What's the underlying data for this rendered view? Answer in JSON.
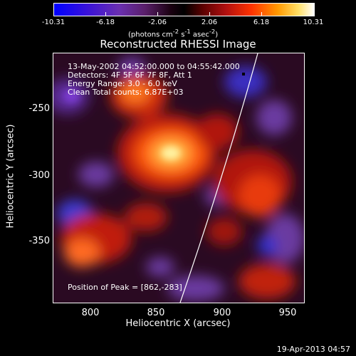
{
  "colorbar": {
    "ticks": [
      "-10.31",
      "-6.18",
      "-2.06",
      "2.06",
      "6.18",
      "10.31"
    ],
    "units": "(photons cm",
    "units_exp1": "-2",
    "units_mid": " s",
    "units_exp2": "-1",
    "units_mid2": " asec",
    "units_exp3": "-2",
    "units_end": ")"
  },
  "title": "Reconstructed RHESSI Image",
  "info": {
    "line1": "13-May-2002 04:52:00.000 to 04:55:42.000",
    "line2": "Detectors: 4F 5F 6F 7F 8F, Att 1",
    "line3": "Energy Range: 3.0 - 6.0 keV",
    "line4": "Clean     Total counts: 6.87E+03"
  },
  "peak": "Position of Peak = [862,-283]",
  "axes": {
    "xlabel": "Heliocentric X (arcsec)",
    "ylabel": "Heliocentric Y (arcsec)",
    "xticks": [
      "800",
      "850",
      "900",
      "950"
    ],
    "yticks": [
      "-250",
      "-300",
      "-350"
    ]
  },
  "footer_date": "19-Apr-2013 04:57",
  "colors": {
    "background": "#000000",
    "text": "#ffffff"
  }
}
